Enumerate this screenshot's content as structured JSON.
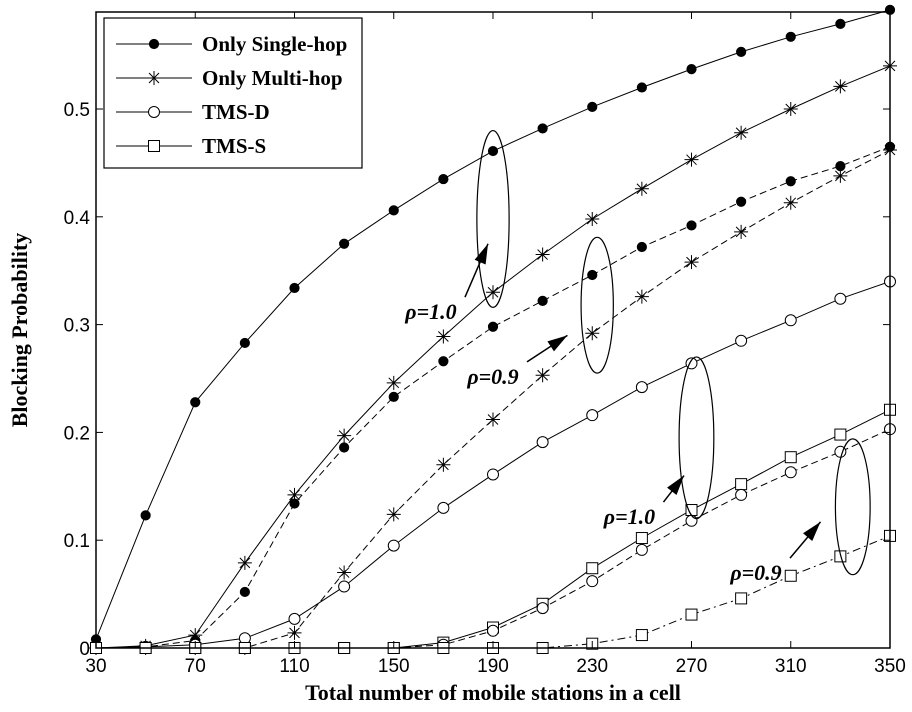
{
  "chart_data": {
    "type": "line",
    "title": "",
    "xlabel": "Total number of mobile stations in a cell",
    "ylabel": "Blocking Probability",
    "xlim": [
      30,
      350
    ],
    "ylim": [
      0,
      0.59
    ],
    "grid": false,
    "legend_position": "top-left",
    "xticks": [
      "30",
      "70",
      "110",
      "150",
      "190",
      "230",
      "270",
      "310",
      "350"
    ],
    "yticks": [
      "0",
      "0.1",
      "0.2",
      "0.3",
      "0.4",
      "0.5"
    ],
    "x": [
      30,
      50,
      70,
      90,
      110,
      130,
      150,
      170,
      190,
      210,
      230,
      250,
      270,
      290,
      310,
      330,
      350
    ],
    "legend": [
      {
        "name": "Only Single-hop",
        "marker": "filled-circle"
      },
      {
        "name": "Only Multi-hop",
        "marker": "asterisk"
      },
      {
        "name": "TMS-D",
        "marker": "open-circle"
      },
      {
        "name": "TMS-S",
        "marker": "open-square"
      }
    ],
    "series": [
      {
        "name": "Only Single-hop",
        "rho": "1.0",
        "marker": "filled-circle",
        "dash": "solid",
        "values": [
          0.008,
          0.123,
          0.228,
          0.283,
          0.334,
          0.375,
          0.406,
          0.435,
          0.461,
          0.482,
          0.502,
          0.52,
          0.537,
          0.553,
          0.567,
          0.579,
          0.592
        ]
      },
      {
        "name": "Only Multi-hop",
        "rho": "1.0",
        "marker": "asterisk",
        "dash": "solid",
        "values": [
          0.0,
          0.002,
          0.012,
          0.079,
          0.142,
          0.197,
          0.246,
          0.289,
          0.33,
          0.365,
          0.398,
          0.426,
          0.453,
          0.478,
          0.5,
          0.521,
          0.54
        ]
      },
      {
        "name": "Only Single-hop",
        "rho": "0.9",
        "marker": "filled-circle",
        "dash": "dashed",
        "values": [
          0.0,
          0.001,
          0.007,
          0.052,
          0.134,
          0.186,
          0.233,
          0.266,
          0.298,
          0.322,
          0.346,
          0.372,
          0.392,
          0.414,
          0.433,
          0.447,
          0.465
        ]
      },
      {
        "name": "Only Multi-hop",
        "rho": "0.9",
        "marker": "asterisk",
        "dash": "dashed",
        "values": [
          0.0,
          0.0,
          0.0,
          0.0,
          0.014,
          0.07,
          0.124,
          0.17,
          0.212,
          0.253,
          0.292,
          0.326,
          0.358,
          0.386,
          0.413,
          0.438,
          0.462
        ]
      },
      {
        "name": "TMS-D",
        "rho": "1.0",
        "marker": "open-circle",
        "dash": "solid",
        "values": [
          0.0,
          0.001,
          0.003,
          0.009,
          0.027,
          0.057,
          0.095,
          0.13,
          0.161,
          0.191,
          0.216,
          0.242,
          0.264,
          0.285,
          0.304,
          0.324,
          0.34
        ]
      },
      {
        "name": "TMS-S",
        "rho": "1.0",
        "marker": "open-square",
        "dash": "solid",
        "values": [
          0.0,
          0.0,
          0.0,
          0.0,
          0.0,
          0.0,
          0.0,
          0.005,
          0.019,
          0.041,
          0.074,
          0.102,
          0.128,
          0.152,
          0.177,
          0.198,
          0.221
        ]
      },
      {
        "name": "TMS-D",
        "rho": "0.9",
        "marker": "open-circle",
        "dash": "dashed",
        "values": [
          0.0,
          0.0,
          0.0,
          0.0,
          0.0,
          0.0,
          0.0,
          0.003,
          0.016,
          0.037,
          0.062,
          0.091,
          0.118,
          0.142,
          0.163,
          0.182,
          0.203
        ]
      },
      {
        "name": "TMS-S",
        "rho": "0.9",
        "marker": "open-square",
        "dash": "dashdot",
        "values": [
          0.0,
          0.0,
          0.0,
          0.0,
          0.0,
          0.0,
          0.0,
          0.0,
          0.0,
          0.0,
          0.004,
          0.012,
          0.031,
          0.046,
          0.067,
          0.085,
          0.104
        ]
      }
    ],
    "annotations": [
      {
        "text": "ρ=1.0",
        "x": 165,
        "y": 0.305,
        "arrow_to": [
          188,
          0.375
        ],
        "ellipse_center": [
          190,
          0.398
        ],
        "ellipse_rx": 6.5,
        "ellipse_ry": 0.082
      },
      {
        "text": "ρ=0.9",
        "x": 190,
        "y": 0.245,
        "arrow_to": [
          220,
          0.29
        ],
        "ellipse_center": [
          232,
          0.318
        ],
        "ellipse_rx": 6.5,
        "ellipse_ry": 0.063
      },
      {
        "text": "ρ=1.0",
        "x": 245,
        "y": 0.115,
        "arrow_to": [
          267,
          0.16
        ],
        "ellipse_center": [
          272,
          0.195
        ],
        "ellipse_rx": 7.0,
        "ellipse_ry": 0.075
      },
      {
        "text": "ρ=0.9",
        "x": 296,
        "y": 0.063,
        "arrow_to": [
          322,
          0.117
        ],
        "ellipse_center": [
          335,
          0.131
        ],
        "ellipse_rx": 7.0,
        "ellipse_ry": 0.063
      }
    ]
  }
}
